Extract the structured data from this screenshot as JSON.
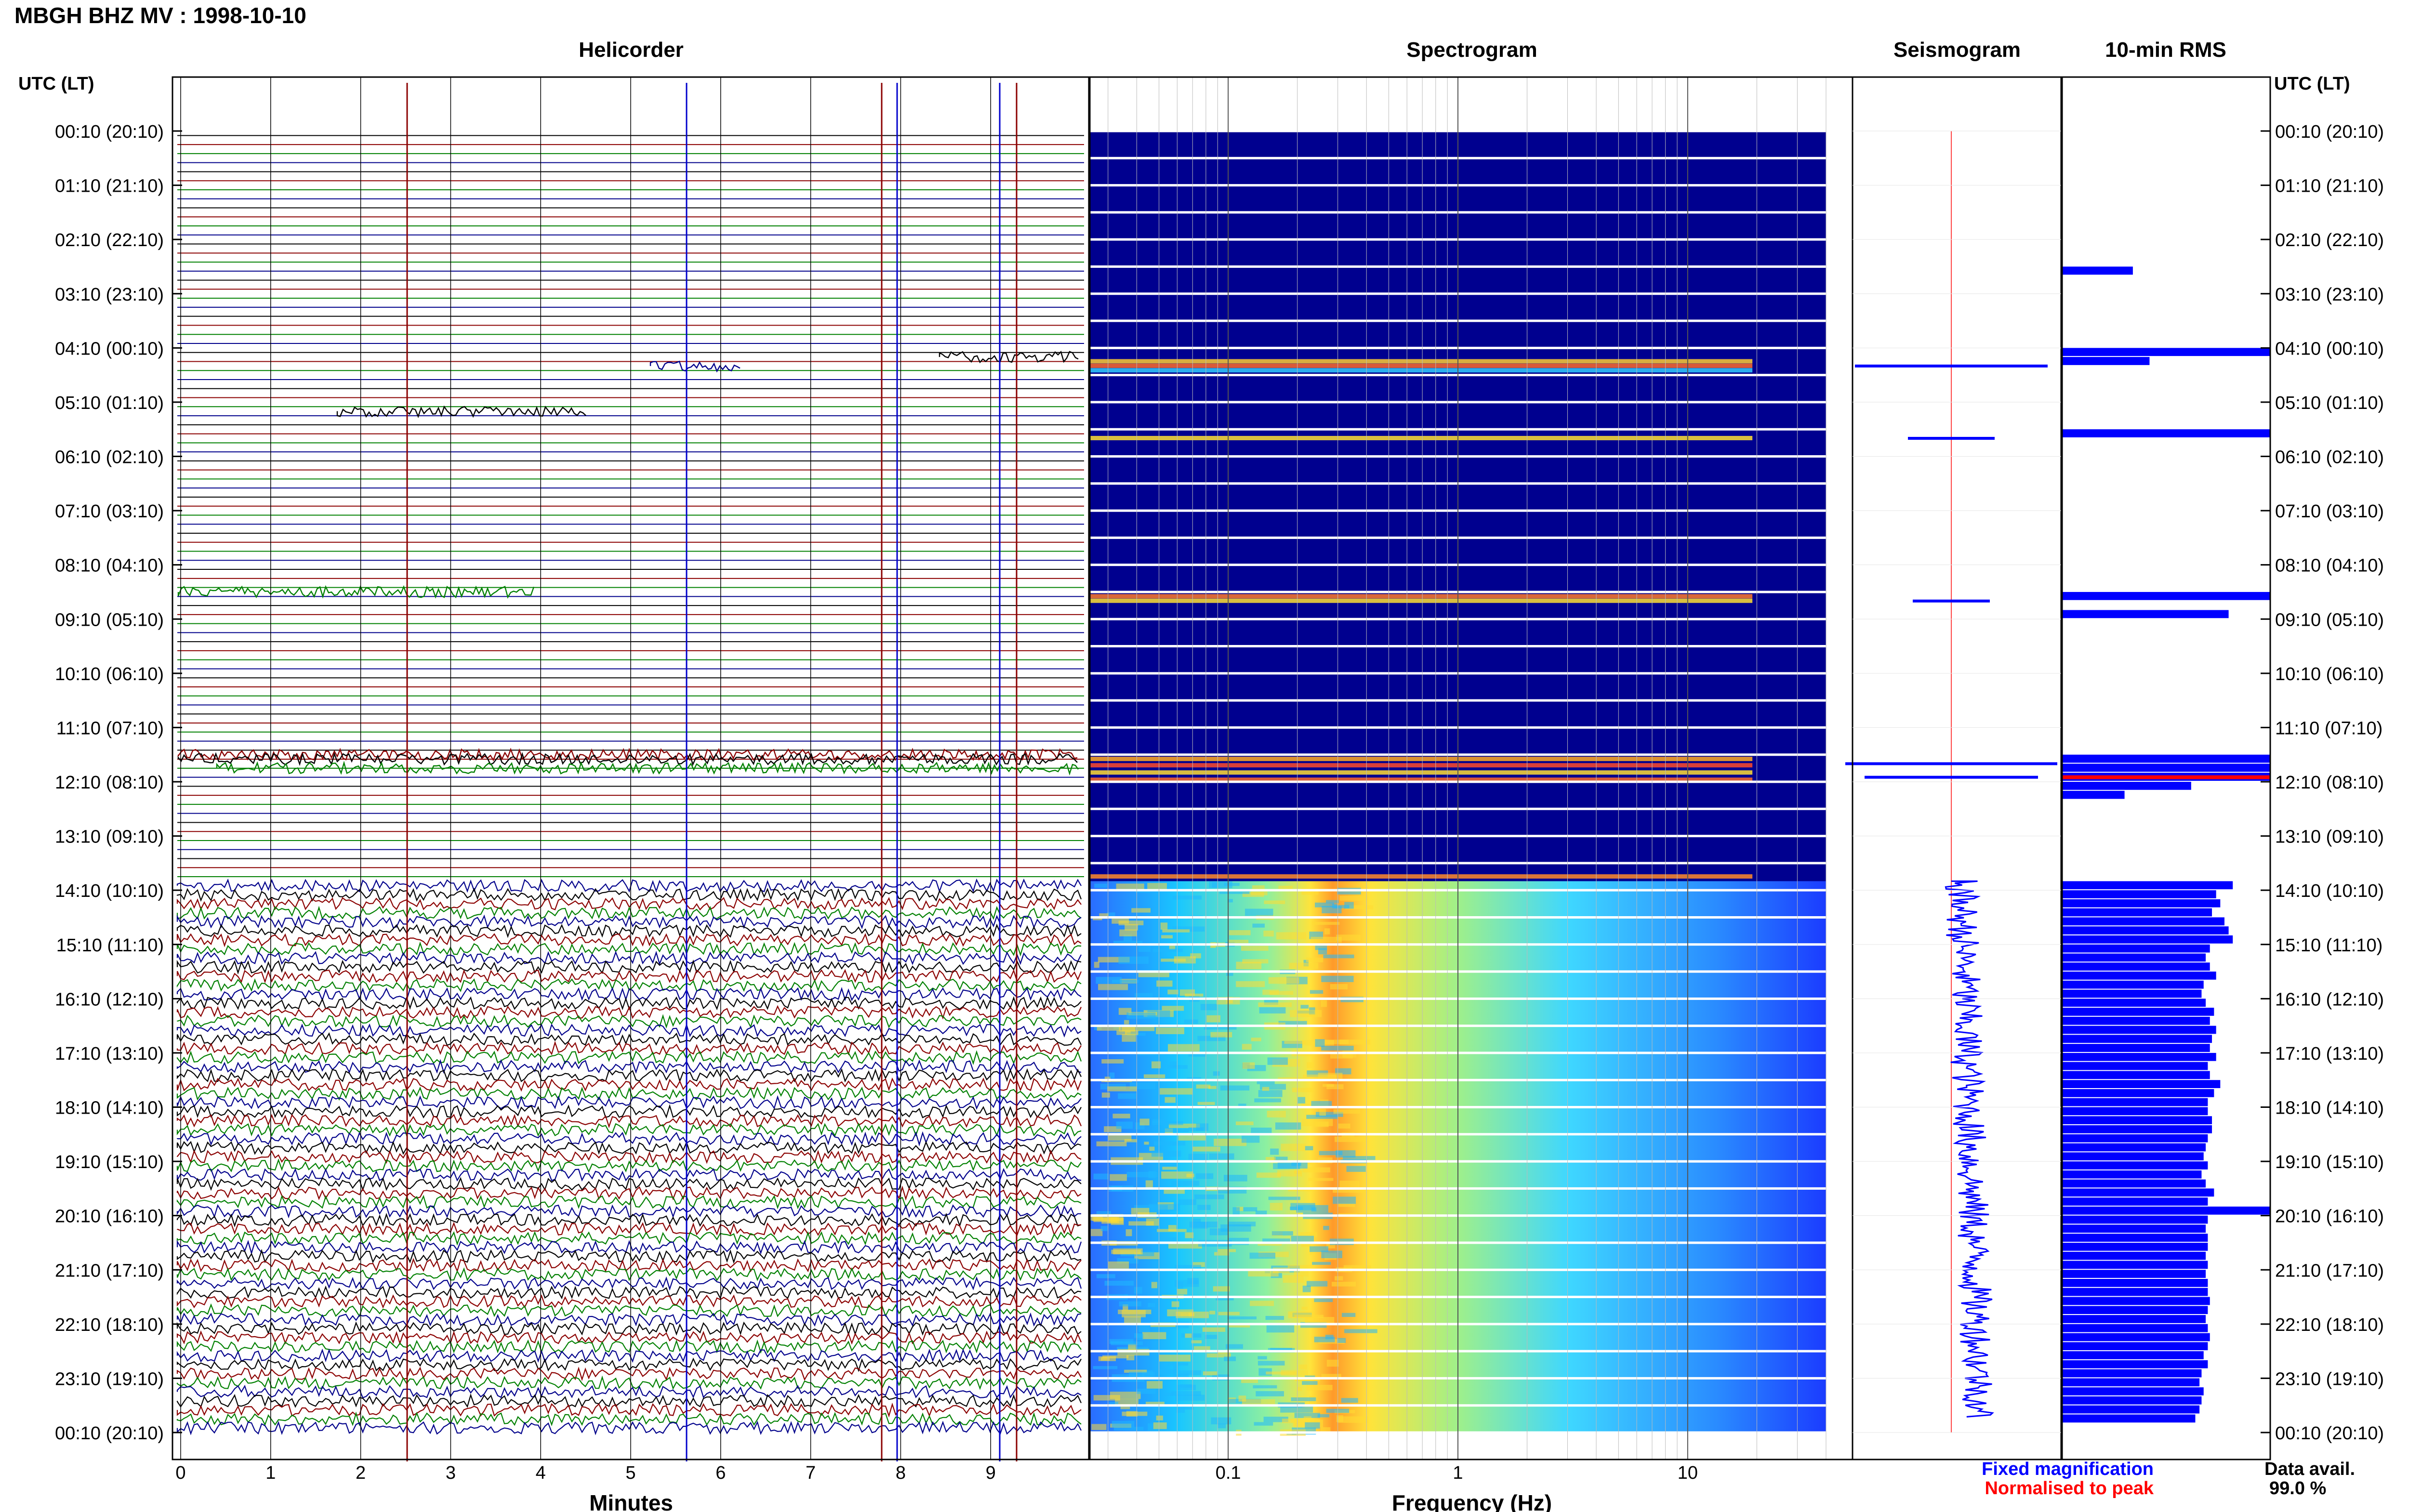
{
  "title": "MBGH BHZ MV : 1998-10-10",
  "panels": {
    "helicorder": "Helicorder",
    "spectrogram": "Spectrogram",
    "seismogram": "Seismogram",
    "rms": "10-min RMS"
  },
  "time_axis_label": "UTC (LT)",
  "time_ticks": [
    "00:10 (20:10)",
    "01:10 (21:10)",
    "02:10 (22:10)",
    "03:10 (23:10)",
    "04:10 (00:10)",
    "05:10 (01:10)",
    "06:10 (02:10)",
    "07:10 (03:10)",
    "08:10 (04:10)",
    "09:10 (05:10)",
    "10:10 (06:10)",
    "11:10 (07:10)",
    "12:10 (08:10)",
    "13:10 (09:10)",
    "14:10 (10:10)",
    "15:10 (11:10)",
    "16:10 (12:10)",
    "17:10 (13:10)",
    "18:10 (14:10)",
    "19:10 (15:10)",
    "20:10 (16:10)",
    "21:10 (17:10)",
    "22:10 (18:10)",
    "23:10 (19:10)",
    "00:10 (20:10)"
  ],
  "helicorder_xlabel": "Minutes",
  "helicorder_xticks": [
    "0",
    "1",
    "2",
    "3",
    "4",
    "5",
    "6",
    "7",
    "8",
    "9"
  ],
  "spectrogram_xlabel": "Frequency (Hz)",
  "spectrogram_xticks": [
    "0.1",
    "1",
    "10"
  ],
  "legend": {
    "fixed": "Fixed magnification",
    "normalised": "Normalised to peak",
    "fixed_color": "#0000ff",
    "normalised_color": "#ff0000"
  },
  "data_avail_label": "Data avail.",
  "data_avail_value": "99.0 %",
  "colors": {
    "trace_black": "#000000",
    "trace_red": "#8b0000",
    "trace_green": "#008000",
    "trace_blue": "#00008b",
    "spectrogram_bg": "#00008f",
    "rms_bar": "#0000ff"
  },
  "chart_data": [
    {
      "type": "line",
      "title": "Helicorder",
      "xlabel": "Minutes",
      "xlim": [
        0,
        10
      ],
      "rows_per_hour": 6,
      "active_from": "14:00",
      "series": [
        {
          "name": "",
          "color": "#000000"
        },
        {
          "name": "",
          "color": "#8b0000"
        },
        {
          "name": "",
          "color": "#008000"
        },
        {
          "name": "",
          "color": "#00008b"
        }
      ]
    },
    {
      "type": "heatmap",
      "title": "Spectrogram",
      "xlabel": "Frequency (Hz)",
      "xscale": "log",
      "xlim": [
        0.025,
        40
      ],
      "peak_band_hz": [
        0.15,
        0.5
      ]
    },
    {
      "type": "line",
      "title": "Seismogram",
      "series": [
        {
          "name": "Fixed magnification"
        },
        {
          "name": "Normalised to peak"
        }
      ]
    },
    {
      "type": "bar",
      "title": "10-min RMS",
      "orientation": "horizontal",
      "categories": [
        "02:40",
        "04:10",
        "04:20",
        "05:40",
        "08:40",
        "09:00",
        "11:40",
        "11:50",
        "12:00",
        "12:10",
        "12:20",
        "14:00",
        "14:10",
        "14:20",
        "14:30",
        "14:40",
        "14:50",
        "15:00",
        "15:10",
        "15:20",
        "15:30",
        "15:40",
        "15:50",
        "16:00",
        "16:10",
        "16:20",
        "16:30",
        "16:40",
        "16:50",
        "17:00",
        "17:10",
        "17:20",
        "17:30",
        "17:40",
        "17:50",
        "18:00",
        "18:10",
        "18:20",
        "18:30",
        "18:40",
        "18:50",
        "19:00",
        "19:10",
        "19:20",
        "19:30",
        "19:40",
        "19:50",
        "20:00",
        "20:10",
        "20:20",
        "20:30",
        "20:40",
        "20:50",
        "21:00",
        "21:10",
        "21:20",
        "21:30",
        "21:40",
        "21:50",
        "22:00",
        "22:10",
        "22:20",
        "22:30",
        "22:40",
        "22:50",
        "23:00",
        "23:10",
        "23:20",
        "23:30",
        "23:40",
        "23:50"
      ],
      "values": [
        0.34,
        1.0,
        0.42,
        1.0,
        1.0,
        0.8,
        1.0,
        1.0,
        1.0,
        0.62,
        0.3,
        0.82,
        0.74,
        0.76,
        0.72,
        0.78,
        0.8,
        0.82,
        0.71,
        0.69,
        0.71,
        0.74,
        0.68,
        0.67,
        0.69,
        0.73,
        0.71,
        0.74,
        0.72,
        0.71,
        0.74,
        0.7,
        0.71,
        0.76,
        0.73,
        0.7,
        0.7,
        0.72,
        0.72,
        0.7,
        0.69,
        0.68,
        0.7,
        0.67,
        0.69,
        0.73,
        0.7,
        1.0,
        0.7,
        0.69,
        0.7,
        0.7,
        0.69,
        0.7,
        0.69,
        0.7,
        0.7,
        0.71,
        0.7,
        0.69,
        0.7,
        0.71,
        0.7,
        0.68,
        0.7,
        0.67,
        0.66,
        0.68,
        0.67,
        0.66,
        0.64
      ]
    }
  ]
}
